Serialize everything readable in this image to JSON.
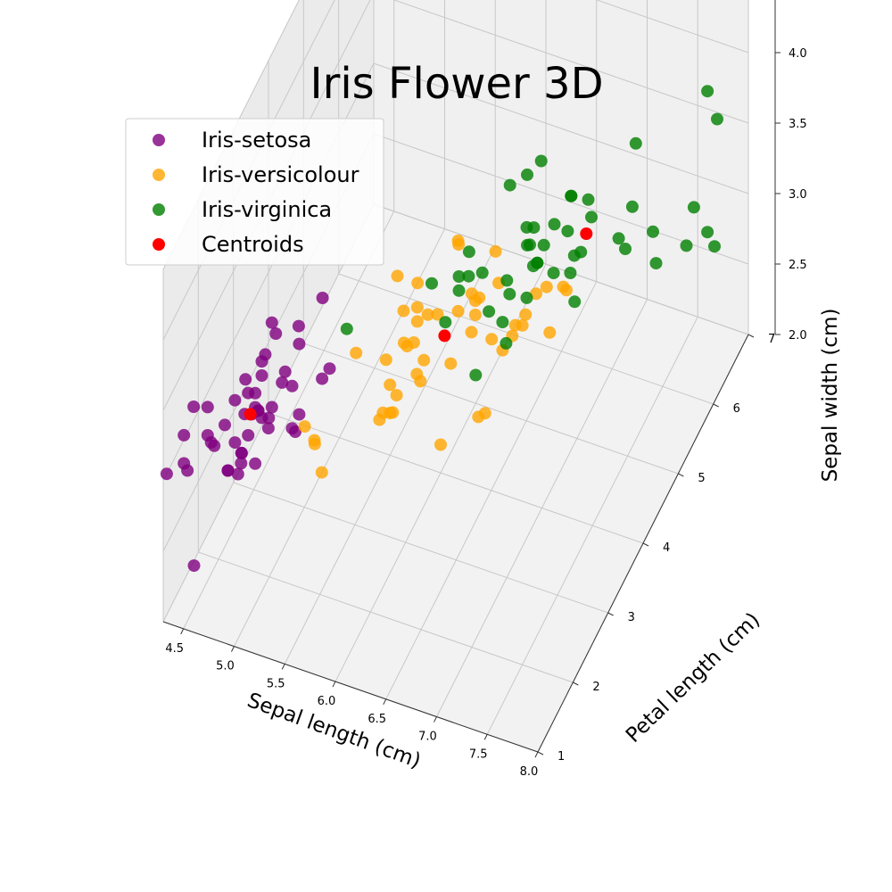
{
  "chart_data": {
    "type": "scatter",
    "title": "Iris Flower 3D",
    "xlabel": "Sepal length (cm)",
    "ylabel": "Petal length (cm)",
    "zlabel": "Sepal width (cm)",
    "xlim": [
      4.3,
      8.0
    ],
    "ylim": [
      1,
      7
    ],
    "zlim": [
      2.0,
      4.5
    ],
    "xticks": [
      "4.5",
      "5.0",
      "5.5",
      "6.0",
      "6.5",
      "7.0",
      "7.5",
      "8.0"
    ],
    "yticks": [
      "1",
      "2",
      "3",
      "4",
      "5",
      "6",
      "7"
    ],
    "zticks": [
      "2.0",
      "2.5",
      "3.0",
      "3.5",
      "4.0",
      "4.5"
    ],
    "grid": true,
    "legend_position": "top-left",
    "series": [
      {
        "name": "Iris-setosa",
        "color": "#800080",
        "points": [
          [
            5.1,
            1.4,
            3.5
          ],
          [
            4.9,
            1.4,
            3.0
          ],
          [
            4.7,
            1.3,
            3.2
          ],
          [
            4.6,
            1.5,
            3.1
          ],
          [
            5.0,
            1.4,
            3.6
          ],
          [
            5.4,
            1.7,
            3.9
          ],
          [
            4.6,
            1.4,
            3.4
          ],
          [
            5.0,
            1.5,
            3.4
          ],
          [
            4.4,
            1.4,
            2.9
          ],
          [
            4.9,
            1.5,
            3.1
          ],
          [
            5.4,
            1.5,
            3.7
          ],
          [
            4.8,
            1.6,
            3.4
          ],
          [
            4.8,
            1.4,
            3.0
          ],
          [
            4.3,
            1.1,
            3.0
          ],
          [
            5.8,
            1.2,
            4.0
          ],
          [
            5.7,
            1.5,
            4.4
          ],
          [
            5.4,
            1.3,
            3.9
          ],
          [
            5.1,
            1.4,
            3.5
          ],
          [
            5.7,
            1.7,
            3.8
          ],
          [
            5.1,
            1.5,
            3.8
          ],
          [
            5.4,
            1.7,
            3.4
          ],
          [
            5.1,
            1.5,
            3.7
          ],
          [
            4.6,
            1.0,
            3.6
          ],
          [
            5.1,
            1.7,
            3.3
          ],
          [
            4.8,
            1.9,
            3.4
          ],
          [
            5.0,
            1.6,
            3.0
          ],
          [
            5.0,
            1.6,
            3.4
          ],
          [
            5.2,
            1.5,
            3.5
          ],
          [
            5.2,
            1.4,
            3.4
          ],
          [
            4.7,
            1.6,
            3.2
          ],
          [
            4.8,
            1.6,
            3.1
          ],
          [
            5.4,
            1.5,
            3.4
          ],
          [
            5.2,
            1.5,
            4.1
          ],
          [
            5.5,
            1.4,
            4.2
          ],
          [
            4.9,
            1.5,
            3.1
          ],
          [
            5.0,
            1.2,
            3.2
          ],
          [
            5.5,
            1.3,
            3.5
          ],
          [
            4.4,
            1.3,
            3.0
          ],
          [
            5.1,
            1.5,
            3.4
          ],
          [
            5.0,
            1.3,
            3.5
          ],
          [
            4.5,
            1.3,
            2.3
          ],
          [
            4.4,
            1.3,
            3.2
          ],
          [
            5.0,
            1.6,
            3.5
          ],
          [
            5.1,
            1.9,
            3.8
          ],
          [
            4.8,
            1.4,
            3.0
          ],
          [
            5.1,
            1.6,
            3.8
          ],
          [
            4.6,
            1.4,
            3.2
          ],
          [
            5.3,
            1.5,
            3.7
          ],
          [
            5.0,
            1.4,
            3.3
          ]
        ]
      },
      {
        "name": "Iris-versicolour",
        "color": "#ffa500",
        "points": [
          [
            7.0,
            4.7,
            3.2
          ],
          [
            6.4,
            4.5,
            3.2
          ],
          [
            6.9,
            4.9,
            3.1
          ],
          [
            5.5,
            4.0,
            2.3
          ],
          [
            6.5,
            4.6,
            2.8
          ],
          [
            5.7,
            4.5,
            2.8
          ],
          [
            6.3,
            4.7,
            3.3
          ],
          [
            4.9,
            3.3,
            2.4
          ],
          [
            6.6,
            4.6,
            2.9
          ],
          [
            5.2,
            3.9,
            2.7
          ],
          [
            5.0,
            3.5,
            2.0
          ],
          [
            5.9,
            4.2,
            3.0
          ],
          [
            6.0,
            4.0,
            2.2
          ],
          [
            6.1,
            4.7,
            2.9
          ],
          [
            5.6,
            3.6,
            2.9
          ],
          [
            6.7,
            4.4,
            3.1
          ],
          [
            5.6,
            4.5,
            3.0
          ],
          [
            5.8,
            4.1,
            2.7
          ],
          [
            6.2,
            4.5,
            2.2
          ],
          [
            5.6,
            3.9,
            2.5
          ],
          [
            5.9,
            4.8,
            3.2
          ],
          [
            6.1,
            4.0,
            2.8
          ],
          [
            6.3,
            4.9,
            2.5
          ],
          [
            6.1,
            4.7,
            2.8
          ],
          [
            6.4,
            4.3,
            2.9
          ],
          [
            6.6,
            4.4,
            3.0
          ],
          [
            6.8,
            4.8,
            2.8
          ],
          [
            6.7,
            5.0,
            3.0
          ],
          [
            6.0,
            4.5,
            2.9
          ],
          [
            5.7,
            3.5,
            2.6
          ],
          [
            5.5,
            3.8,
            2.4
          ],
          [
            5.5,
            3.7,
            2.4
          ],
          [
            5.8,
            3.9,
            2.7
          ],
          [
            6.0,
            5.1,
            2.7
          ],
          [
            5.4,
            4.5,
            3.0
          ],
          [
            6.0,
            4.5,
            3.4
          ],
          [
            6.7,
            4.7,
            3.1
          ],
          [
            6.3,
            4.4,
            2.3
          ],
          [
            5.6,
            4.1,
            3.0
          ],
          [
            5.5,
            4.0,
            2.5
          ],
          [
            5.5,
            4.4,
            2.6
          ],
          [
            6.1,
            4.6,
            3.0
          ],
          [
            5.8,
            4.0,
            2.6
          ],
          [
            5.0,
            3.3,
            2.3
          ],
          [
            5.6,
            4.2,
            2.7
          ],
          [
            5.7,
            4.2,
            3.0
          ],
          [
            5.7,
            4.2,
            2.9
          ],
          [
            6.2,
            4.3,
            2.9
          ],
          [
            5.1,
            3.0,
            2.5
          ],
          [
            5.7,
            4.1,
            2.8
          ]
        ]
      },
      {
        "name": "Iris-virginica",
        "color": "#008000",
        "points": [
          [
            6.3,
            6.0,
            3.3
          ],
          [
            5.8,
            5.1,
            2.7
          ],
          [
            7.1,
            5.9,
            3.0
          ],
          [
            6.3,
            5.6,
            2.9
          ],
          [
            6.5,
            5.8,
            3.0
          ],
          [
            7.6,
            6.6,
            3.0
          ],
          [
            4.9,
            4.5,
            2.5
          ],
          [
            7.3,
            6.3,
            2.9
          ],
          [
            6.7,
            5.8,
            2.5
          ],
          [
            7.2,
            6.1,
            3.6
          ],
          [
            6.5,
            5.1,
            3.2
          ],
          [
            6.4,
            5.3,
            2.7
          ],
          [
            6.8,
            5.5,
            3.0
          ],
          [
            5.7,
            5.0,
            2.5
          ],
          [
            5.8,
            5.1,
            2.8
          ],
          [
            6.4,
            5.3,
            3.2
          ],
          [
            6.5,
            5.5,
            3.0
          ],
          [
            7.7,
            6.7,
            3.8
          ],
          [
            7.7,
            6.9,
            2.6
          ],
          [
            6.0,
            5.0,
            2.2
          ],
          [
            6.9,
            5.7,
            3.2
          ],
          [
            5.6,
            4.9,
            2.8
          ],
          [
            7.7,
            6.7,
            2.8
          ],
          [
            6.3,
            4.9,
            2.7
          ],
          [
            6.7,
            5.7,
            3.3
          ],
          [
            7.2,
            6.0,
            3.2
          ],
          [
            6.2,
            4.8,
            2.8
          ],
          [
            6.1,
            4.9,
            3.0
          ],
          [
            6.4,
            5.6,
            2.8
          ],
          [
            7.2,
            5.8,
            3.0
          ],
          [
            7.4,
            6.1,
            2.8
          ],
          [
            7.9,
            6.4,
            3.8
          ],
          [
            6.4,
            5.6,
            2.8
          ],
          [
            6.3,
            5.1,
            2.8
          ],
          [
            6.1,
            5.6,
            2.6
          ],
          [
            7.7,
            6.1,
            3.0
          ],
          [
            6.3,
            5.6,
            3.4
          ],
          [
            6.4,
            5.5,
            3.1
          ],
          [
            6.0,
            4.8,
            3.0
          ],
          [
            6.9,
            5.4,
            3.1
          ],
          [
            6.7,
            5.6,
            3.1
          ],
          [
            6.9,
            5.1,
            3.1
          ],
          [
            6.8,
            5.9,
            3.2
          ],
          [
            6.7,
            5.7,
            3.3
          ],
          [
            6.7,
            5.2,
            3.0
          ],
          [
            6.3,
            5.0,
            2.5
          ],
          [
            6.5,
            5.2,
            3.0
          ],
          [
            6.2,
            5.4,
            3.4
          ],
          [
            5.9,
            5.1,
            3.0
          ]
        ]
      },
      {
        "name": "Centroids",
        "color": "#ff0000",
        "points": [
          [
            5.9,
            4.4,
            2.75
          ],
          [
            6.85,
            5.7,
            3.07
          ],
          [
            5.0,
            1.46,
            3.42
          ]
        ]
      }
    ]
  }
}
